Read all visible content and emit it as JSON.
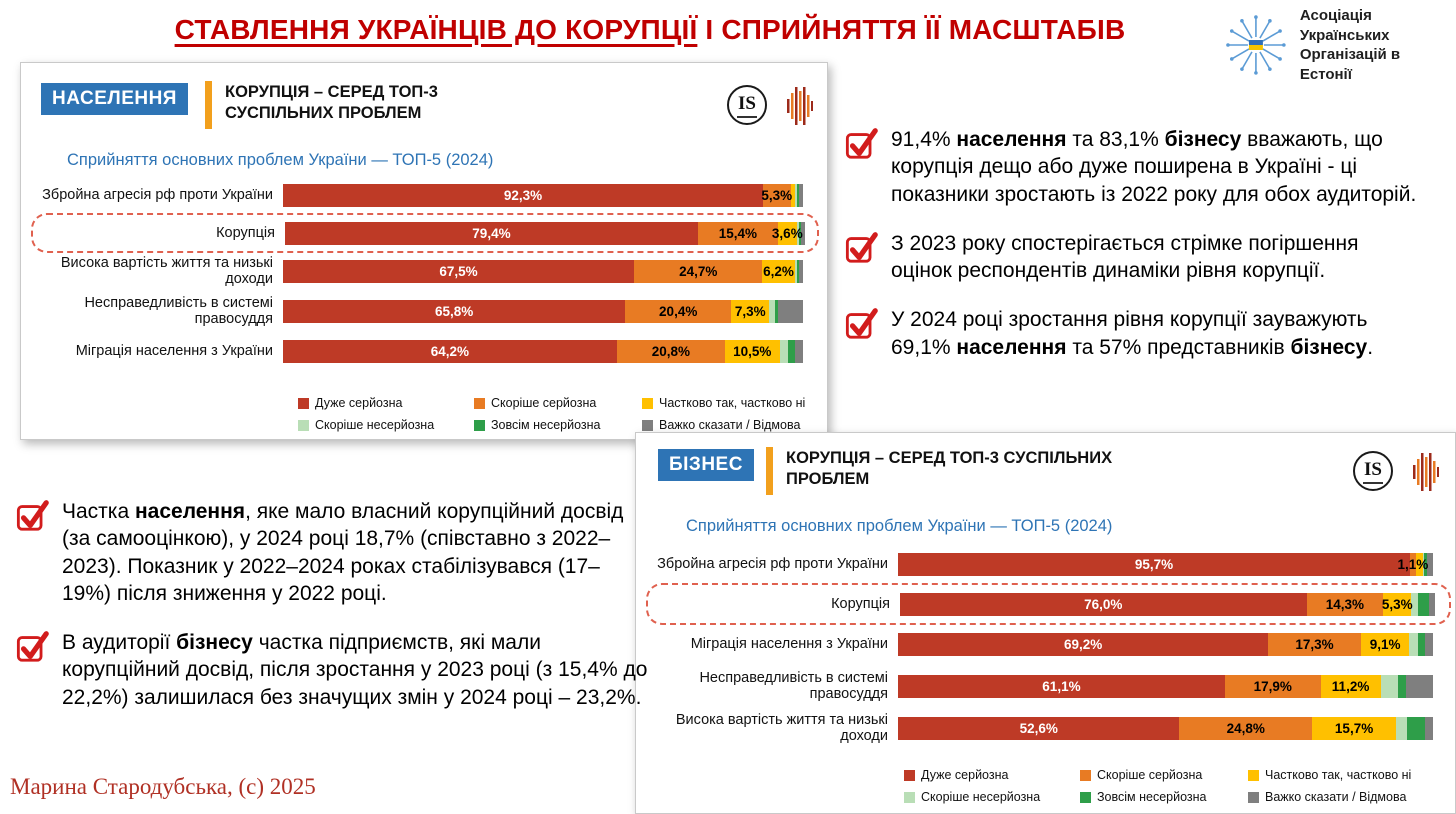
{
  "page": {
    "title_underlined": "СТАВЛЕННЯ УКРАЇНЦІВ ДО КОРУПЦІЇ",
    "title_rest": " І СПРИЙНЯТТЯ ЇЇ МАСШТАБІВ",
    "signature": "Марина Стародубська, (с) 2025"
  },
  "association_logo": {
    "line1": "Асоціація",
    "line2": "Українських",
    "line3": "Організацій в Естонії"
  },
  "colors": {
    "title_red": "#C00000",
    "accent_blue": "#2E74B5",
    "accent_orange": "#F2A01D",
    "check_red": "#D21C1C",
    "highlight_dashed": "#E0614F",
    "series": [
      "#BE3A26",
      "#E87B23",
      "#FFC000",
      "#B9DEB6",
      "#2E9E49",
      "#7F7F7F"
    ]
  },
  "legend": [
    "Дуже серйозна",
    "Скоріше серйозна",
    "Частково так, частково ні",
    "Скоріше несерйозна",
    "Зовсім несерйозна",
    "Важко сказати / Відмова"
  ],
  "panels": [
    {
      "tag": "НАСЕЛЕННЯ",
      "heading": "КОРУПЦІЯ – СЕРЕД ТОП-3 СУСПІЛЬНИХ ПРОБЛЕМ",
      "subtitle": "Сприйняття основних проблем України — ТОП-5 (2024)",
      "brand": "IS",
      "chart_data": {
        "type": "bar",
        "stacked": true,
        "orientation": "horizontal",
        "xlim": [
          0,
          100
        ],
        "series_names": [
          "Дуже серйозна",
          "Скоріше серйозна",
          "Частково так, частково ні",
          "Скоріше несерйозна",
          "Зовсім несерйозна",
          "Важко сказати / Відмова"
        ],
        "rows": [
          {
            "category": "Збройна агресія рф проти України",
            "values": [
              92.3,
              5.3,
              0.9,
              0.3,
              0.4,
              0.8
            ],
            "labels": [
              "92,3%",
              "5,3%",
              "",
              "",
              "",
              ""
            ],
            "highlight": false
          },
          {
            "category": "Корупція",
            "values": [
              79.4,
              15.4,
              3.6,
              0.5,
              0.4,
              0.7
            ],
            "labels": [
              "79,4%",
              "15,4%",
              "3,6%",
              "",
              "",
              ""
            ],
            "highlight": true
          },
          {
            "category": "Висока вартість життя та низькі доходи",
            "values": [
              67.5,
              24.7,
              6.2,
              0.5,
              0.4,
              0.7
            ],
            "labels": [
              "67,5%",
              "24,7%",
              "6,2%",
              "",
              "",
              ""
            ],
            "highlight": false
          },
          {
            "category": "Несправедливість в системі правосуддя",
            "values": [
              65.8,
              20.4,
              7.3,
              1.2,
              0.5,
              4.8
            ],
            "labels": [
              "65,8%",
              "20,4%",
              "7,3%",
              "",
              "",
              ""
            ],
            "highlight": false
          },
          {
            "category": "Міграція населення з України",
            "values": [
              64.2,
              20.8,
              10.5,
              1.7,
              1.3,
              1.5
            ],
            "labels": [
              "64,2%",
              "20,8%",
              "10,5%",
              "",
              "",
              ""
            ],
            "highlight": false
          }
        ]
      }
    },
    {
      "tag": "БІЗНЕС",
      "heading": "КОРУПЦІЯ – СЕРЕД ТОП-3 СУСПІЛЬНИХ ПРОБЛЕМ",
      "subtitle": "Сприйняття основних проблем України — ТОП-5 (2024)",
      "brand": "IS",
      "chart_data": {
        "type": "bar",
        "stacked": true,
        "orientation": "horizontal",
        "xlim": [
          0,
          100
        ],
        "series_names": [
          "Дуже серйозна",
          "Скоріше серйозна",
          "Частково так, частково ні",
          "Скоріше несерйозна",
          "Зовсім несерйозна",
          "Важко сказати / Відмова"
        ],
        "rows": [
          {
            "category": "Збройна агресія рф проти України",
            "values": [
              95.7,
              1.1,
              1.3,
              0.3,
              0.5,
              1.1
            ],
            "labels": [
              "95,7%",
              "1,1%",
              "",
              "",
              "",
              ""
            ],
            "highlight": false
          },
          {
            "category": "Корупція",
            "values": [
              76.0,
              14.3,
              5.3,
              1.2,
              2.0,
              1.2
            ],
            "labels": [
              "76,0%",
              "14,3%",
              "5,3%",
              "",
              "",
              ""
            ],
            "highlight": true
          },
          {
            "category": "Міграція населення з України",
            "values": [
              69.2,
              17.3,
              9.1,
              1.6,
              1.4,
              1.4
            ],
            "labels": [
              "69,2%",
              "17,3%",
              "9,1%",
              "",
              "",
              ""
            ],
            "highlight": false
          },
          {
            "category": "Несправедливість в системі правосуддя",
            "values": [
              61.1,
              17.9,
              11.2,
              3.2,
              1.6,
              5.0
            ],
            "labels": [
              "61,1%",
              "17,9%",
              "11,2%",
              "",
              "",
              ""
            ],
            "highlight": false
          },
          {
            "category": "Висока вартість життя та низькі доходи",
            "values": [
              52.6,
              24.8,
              15.7,
              2.0,
              3.4,
              1.5
            ],
            "labels": [
              "52,6%",
              "24,8%",
              "15,7%",
              "",
              "",
              ""
            ],
            "highlight": false
          }
        ]
      }
    }
  ],
  "right_bullets": [
    "91,4% **населення** та 83,1% **бізнесу** вважають, що корупція дещо або дуже поширена в Україні - ці показники зростають із 2022 року для обох аудиторій.",
    "З 2023 року спостерігається стрімке погіршення оцінок респондентів динаміки рівня корупції.",
    "У 2024 році зростання рівня корупції зауважують 69,1% **населення** та 57% представників **бізнесу**."
  ],
  "left_bullets": [
    "Частка **населення**, яке мало власний корупційний досвід (за самооцінкою), у 2024 році 18,7% (співставно з 2022–2023). Показник у 2022–2024 роках стабілізувався (17–19%) після зниження у 2022 році.",
    "В аудиторії **бізнесу** частка підприємств, які мали корупційний досвід, після зростання у 2023 році (з 15,4% до 22,2%) залишилася без значущих змін у 2024 році – 23,2%."
  ]
}
